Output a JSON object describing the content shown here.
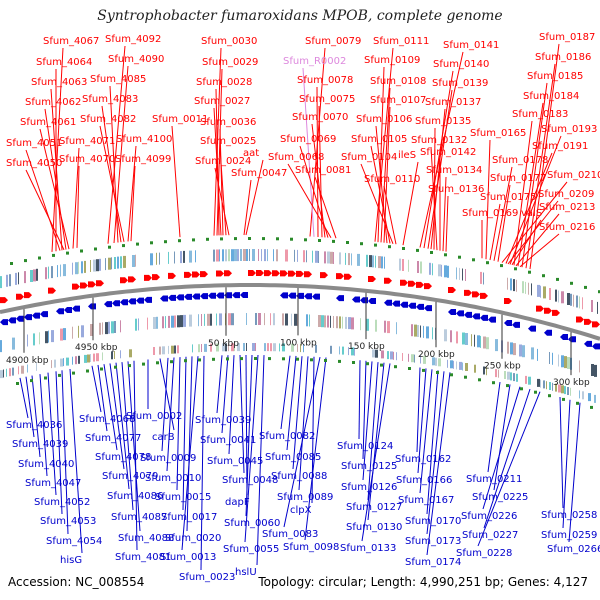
{
  "title": "Syntrophobacter fumaroxidans MPOB, complete genome",
  "footer": {
    "accession": "Accession: NC_008554",
    "summary": "Topology: circular; Length: 4,990,251 bp; Genes: 4,127"
  },
  "colors": {
    "forward": "#ff0000",
    "reverse": "#0000cc",
    "pseudo": "#dd88dd",
    "tick_marker": "#2a8a2a"
  },
  "top_labels": [
    {
      "text": "Sfum_4067"
    },
    {
      "text": "Sfum_4092"
    },
    {
      "text": "Sfum_4064"
    },
    {
      "text": "Sfum_4090"
    },
    {
      "text": "Sfum_4063"
    },
    {
      "text": "Sfum_4085"
    },
    {
      "text": "Sfum_4062"
    },
    {
      "text": "Sfum_4083"
    },
    {
      "text": "Sfum_4061"
    },
    {
      "text": "Sfum_4082"
    },
    {
      "text": "Sfum_4051"
    },
    {
      "text": "Sfum_4071"
    },
    {
      "text": "Sfum_4100"
    },
    {
      "text": "Sfum_4050"
    },
    {
      "text": "Sfum_4070"
    },
    {
      "text": "Sfum_4099"
    },
    {
      "text": "Sfum_0030"
    },
    {
      "text": "Sfum_0029"
    },
    {
      "text": "Sfum_0028"
    },
    {
      "text": "Sfum_0027"
    },
    {
      "text": "Sfum_0011"
    },
    {
      "text": "Sfum_0036"
    },
    {
      "text": "Sfum_0025"
    },
    {
      "text": "aat"
    },
    {
      "text": "Sfum_0024"
    },
    {
      "text": "Sfum_0047"
    },
    {
      "text": "Sfum_0079"
    },
    {
      "text": "Sfum_R0002"
    },
    {
      "text": "Sfum_0078"
    },
    {
      "text": "Sfum_0075"
    },
    {
      "text": "Sfum_0070"
    },
    {
      "text": "Sfum_0069"
    },
    {
      "text": "Sfum_0068"
    },
    {
      "text": "Sfum_0081"
    },
    {
      "text": "Sfum_0111"
    },
    {
      "text": "Sfum_0109"
    },
    {
      "text": "Sfum_0108"
    },
    {
      "text": "Sfum_0107"
    },
    {
      "text": "Sfum_0106"
    },
    {
      "text": "Sfum_0105"
    },
    {
      "text": "Sfum_0104"
    },
    {
      "text": "Sfum_0110"
    },
    {
      "text": "ileS"
    },
    {
      "text": "Sfum_0141"
    },
    {
      "text": "Sfum_0140"
    },
    {
      "text": "Sfum_0139"
    },
    {
      "text": "Sfum_0137"
    },
    {
      "text": "Sfum_0135"
    },
    {
      "text": "Sfum_0132"
    },
    {
      "text": "Sfum_0142"
    },
    {
      "text": "Sfum_0134"
    },
    {
      "text": "Sfum_0136"
    },
    {
      "text": "Sfum_0187"
    },
    {
      "text": "Sfum_0186"
    },
    {
      "text": "Sfum_0185"
    },
    {
      "text": "Sfum_0184"
    },
    {
      "text": "Sfum_0183"
    },
    {
      "text": "Sfum_0165"
    },
    {
      "text": "Sfum_0193"
    },
    {
      "text": "Sfum_0191"
    },
    {
      "text": "Sfum_0178"
    },
    {
      "text": "Sfum_0177"
    },
    {
      "text": "Sfum_0210"
    },
    {
      "text": "Sfum_0175"
    },
    {
      "text": "Sfum_0209"
    },
    {
      "text": "Sfum_0169"
    },
    {
      "text": "valS"
    },
    {
      "text": "Sfum_0213"
    },
    {
      "text": "Sfum_0216"
    }
  ],
  "bottom_labels": [
    {
      "text": "Sfum_4036"
    },
    {
      "text": "Sfum_4039"
    },
    {
      "text": "Sfum_4040"
    },
    {
      "text": "Sfum_4047"
    },
    {
      "text": "Sfum_4052"
    },
    {
      "text": "Sfum_4053"
    },
    {
      "text": "Sfum_4054"
    },
    {
      "text": "hisG"
    },
    {
      "text": "Sfum_4068"
    },
    {
      "text": "Sfum_4077"
    },
    {
      "text": "Sfum_4078"
    },
    {
      "text": "Sfum_4079"
    },
    {
      "text": "Sfum_4086"
    },
    {
      "text": "Sfum_4087"
    },
    {
      "text": "Sfum_4088"
    },
    {
      "text": "Sfum_4081"
    },
    {
      "text": "Sfum_0002"
    },
    {
      "text": "carB"
    },
    {
      "text": "Sfum_0009"
    },
    {
      "text": "Sfum_0010"
    },
    {
      "text": "Sfum_0015"
    },
    {
      "text": "Sfum_0017"
    },
    {
      "text": "Sfum_0020"
    },
    {
      "text": "Sfum_0013"
    },
    {
      "text": "Sfum_0023"
    },
    {
      "text": "Sfum_0039"
    },
    {
      "text": "Sfum_0041"
    },
    {
      "text": "Sfum_0045"
    },
    {
      "text": "Sfum_0048"
    },
    {
      "text": "dapF"
    },
    {
      "text": "Sfum_0060"
    },
    {
      "text": "Sfum_0055"
    },
    {
      "text": "hslU"
    },
    {
      "text": "Sfum_0082"
    },
    {
      "text": "Sfum_0085"
    },
    {
      "text": "Sfum_0088"
    },
    {
      "text": "Sfum_0089"
    },
    {
      "text": "clpX"
    },
    {
      "text": "Sfum_0083"
    },
    {
      "text": "Sfum_0098"
    },
    {
      "text": "Sfum_0124"
    },
    {
      "text": "Sfum_0125"
    },
    {
      "text": "Sfum_0126"
    },
    {
      "text": "Sfum_0127"
    },
    {
      "text": "Sfum_0130"
    },
    {
      "text": "Sfum_0133"
    },
    {
      "text": "Sfum_0162"
    },
    {
      "text": "Sfum_0166"
    },
    {
      "text": "Sfum_0167"
    },
    {
      "text": "Sfum_0170"
    },
    {
      "text": "Sfum_0173"
    },
    {
      "text": "Sfum_0174"
    },
    {
      "text": "Sfum_0211"
    },
    {
      "text": "Sfum_0225"
    },
    {
      "text": "Sfum_0226"
    },
    {
      "text": "Sfum_0227"
    },
    {
      "text": "Sfum_0228"
    },
    {
      "text": "Sfum_0258"
    },
    {
      "text": "Sfum_0259"
    },
    {
      "text": "Sfum_0266"
    }
  ],
  "scale_ticks": [
    {
      "text": "4900 kbp"
    },
    {
      "text": "4950 kbp"
    },
    {
      "text": "50 kbp"
    },
    {
      "text": "100 kbp"
    },
    {
      "text": "150 kbp"
    },
    {
      "text": "200 kbp"
    },
    {
      "text": "250 kbp"
    },
    {
      "text": "300 kbp"
    }
  ]
}
